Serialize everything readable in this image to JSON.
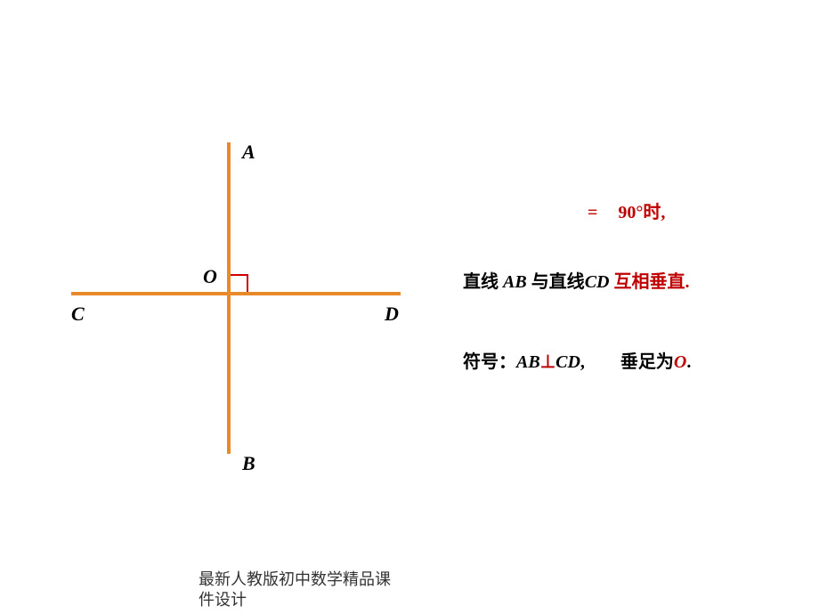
{
  "diagram": {
    "type": "geometry-perpendicular",
    "line_color": "#e88a2a",
    "line_width": 4,
    "angle_mark_color": "#d00000",
    "labels": {
      "A": "A",
      "B": "B",
      "C": "C",
      "D": "D",
      "O": "O"
    },
    "label_fontsize": 22,
    "label_color": "#000000"
  },
  "text": {
    "angle_eq": "=",
    "angle_value": "90°时,",
    "line_prefix": "直线 ",
    "line_AB": "AB",
    "line_mid": " 与直线",
    "line_CD": "CD",
    "line_space": " ",
    "perpendicular": "互相垂直.",
    "symbol_prefix": "符号：",
    "symbol_AB": "AB",
    "perp_sign": "⊥",
    "symbol_CD": "CD",
    "symbol_comma": ",",
    "foot_prefix": "垂足为",
    "foot_O": "O",
    "foot_period": "."
  },
  "footer": {
    "line1": "最新人教版初中数学精品课",
    "line2": "件设计"
  },
  "colors": {
    "red": "#c00000",
    "orange": "#e88a2a",
    "black": "#000000"
  }
}
